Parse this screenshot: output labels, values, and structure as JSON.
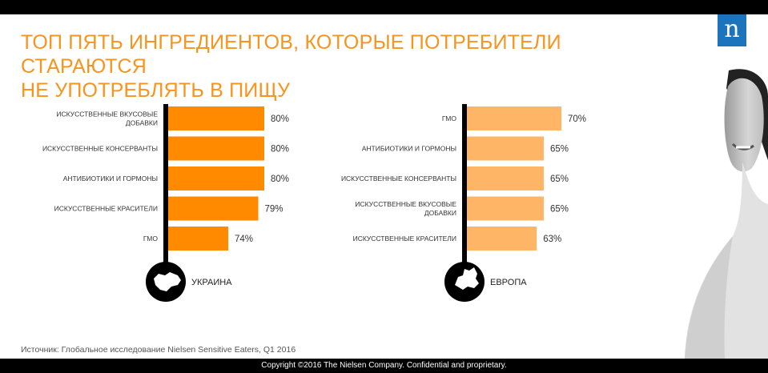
{
  "title_lines": [
    "ТОП ПЯТЬ ИНГРЕДИЕНТОВ, КОТОРЫЕ ПОТРЕБИТЕЛИ СТАРАЮТСЯ",
    "НЕ УПОТРЕБЛЯТЬ В ПИЩУ"
  ],
  "logo": "n",
  "source": "Источник: Глобальное исследование Nielsen Sensitive Eaters, Q1 2016",
  "footer": "Copyright ©2016 The Nielsen Company. Confidential and proprietary.",
  "colors": {
    "accent": "#f7941d",
    "ukraine_bar": "#ff8a00",
    "europe_bar": "#ffb566",
    "dark": "#000000",
    "logo_bg": "#1c75bc"
  },
  "chart_data": [
    {
      "type": "bar",
      "orientation": "horizontal",
      "region": "УКРАИНА",
      "icon": "ukraine-map-icon",
      "categories": [
        [
          "ИСКУССТВЕННЫЕ ВКУСОВЫЕ",
          "ДОБАВКИ"
        ],
        [
          "ИСКУССТВЕННЫЕ КОНСЕРВАНТЫ"
        ],
        [
          "АНТИБИОТИКИ И ГОРМОНЫ"
        ],
        [
          "ИСКУССТВЕННЫЕ КРАСИТЕЛИ"
        ],
        [
          "ГМО"
        ]
      ],
      "values": [
        80,
        80,
        80,
        79,
        74
      ],
      "labels": [
        "80%",
        "80%",
        "80%",
        "79%",
        "74%"
      ],
      "xlim": [
        70,
        80
      ]
    },
    {
      "type": "bar",
      "orientation": "horizontal",
      "region": "ЕВРОПА",
      "icon": "europe-map-icon",
      "categories": [
        [
          "ГМО"
        ],
        [
          "АНТИБИОТИКИ И ГОРМОНЫ"
        ],
        [
          "ИСКУССТВЕННЫЕ КОНСЕРВАНТЫ"
        ],
        [
          "ИСКУССТВЕННЫЕ ВКУСОВЫЕ",
          "ДОБАВКИ"
        ],
        [
          "ИСКУССТВЕННЫЕ КРАСИТЕЛИ"
        ]
      ],
      "values": [
        70,
        65,
        65,
        65,
        63
      ],
      "labels": [
        "70%",
        "65%",
        "65%",
        "65%",
        "63%"
      ],
      "xlim": [
        60,
        70
      ]
    }
  ]
}
